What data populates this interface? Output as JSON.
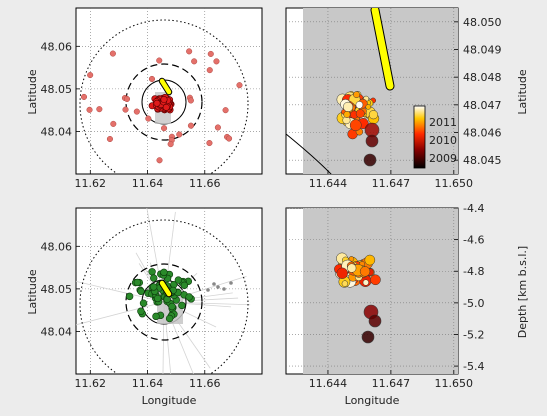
{
  "figure": {
    "panels": [
      {
        "id": "map-red",
        "ylabel": "Latitude",
        "xlabel": ""
      },
      {
        "id": "map-green",
        "ylabel": "Latitude",
        "xlabel": "Longitude"
      },
      {
        "id": "map-right-top",
        "ylabel": "Latitude",
        "xlabel": ""
      },
      {
        "id": "depth-right-bottom",
        "ylabel": "Depth [km b.s.l.]",
        "xlabel": "Longitude"
      }
    ],
    "colorbar": {
      "labels": [
        "2011",
        "2010",
        "2009"
      ],
      "colormap": "hot"
    }
  },
  "chart_data": [
    {
      "type": "scatter",
      "panel": "map-red",
      "xlabel": "",
      "ylabel": "Latitude",
      "xlim": [
        11.615,
        11.68
      ],
      "ylim": [
        48.03,
        48.069
      ],
      "xticks": [
        "11.62",
        "11.64",
        "11.66"
      ],
      "yticks": [
        "48.04",
        "48.05",
        "48.06"
      ],
      "grid": true,
      "marker_color": "#e8504e",
      "points_note": "dense cluster around 11.645, 48.048"
    },
    {
      "type": "scatter",
      "panel": "map-green",
      "xlabel": "Longitude",
      "ylabel": "Latitude",
      "xlim": [
        11.615,
        11.68
      ],
      "ylim": [
        48.03,
        48.069
      ],
      "xticks": [
        "11.62",
        "11.64",
        "11.66"
      ],
      "yticks": [
        "48.04",
        "48.05",
        "48.06"
      ],
      "grid": true,
      "marker_color": "#2d8a2d"
    },
    {
      "type": "scatter",
      "panel": "map-right-top",
      "xlabel": "",
      "ylabel": "Latitude",
      "xlim": [
        11.642,
        11.6502
      ],
      "ylim": [
        48.0445,
        48.0505
      ],
      "xticks": [
        "11.644",
        "11.647",
        "11.650"
      ],
      "yticks": [
        "48.045",
        "48.046",
        "48.047",
        "48.048",
        "48.049",
        "48.050"
      ],
      "grid": true,
      "colorbar": {
        "min": 2009,
        "max": 2011.5,
        "labels": [
          "2011",
          "2010",
          "2009"
        ]
      }
    },
    {
      "type": "scatter",
      "panel": "depth-right-bottom",
      "xlabel": "Longitude",
      "ylabel": "Depth [km b.s.l.]",
      "xlim": [
        11.642,
        11.6502
      ],
      "ylim": [
        -5.45,
        -4.4
      ],
      "xticks": [
        "11.644",
        "11.647",
        "11.650"
      ],
      "yticks": [
        "-4.4",
        "-4.6",
        "-4.8",
        "-5.0",
        "-5.2",
        "-5.4"
      ],
      "grid": true
    }
  ]
}
